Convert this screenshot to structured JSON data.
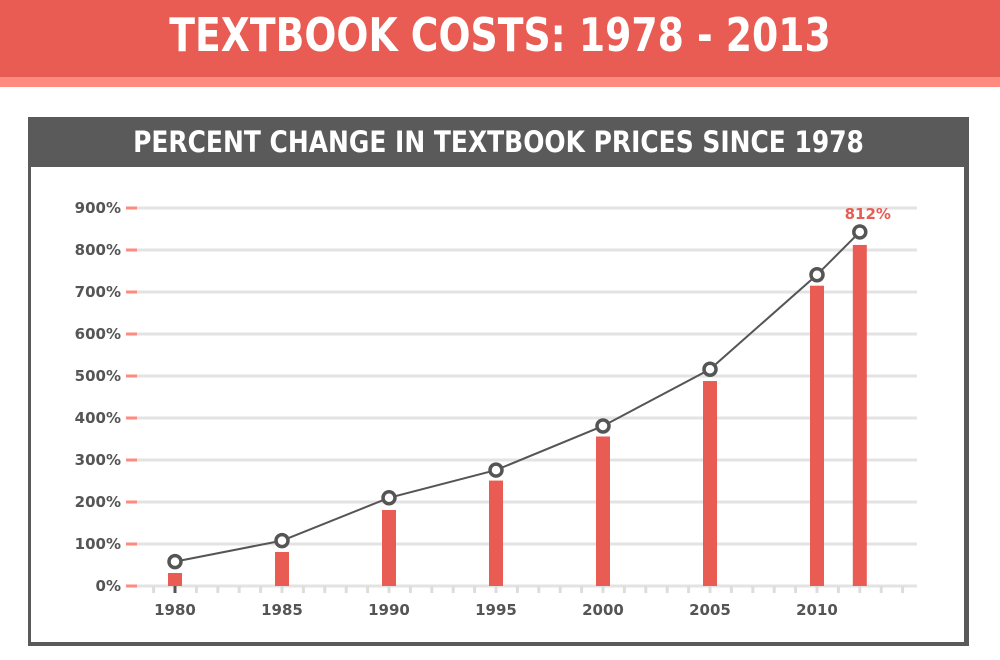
{
  "header": {
    "title": "TEXTBOOK COSTS: 1978 - 2013"
  },
  "chart_data": {
    "type": "bar+line",
    "title": "PERCENT CHANGE IN TEXTBOOK PRICES SINCE 1978",
    "xlabel": "",
    "ylabel": "",
    "x_tick_labels": [
      "1980",
      "1985",
      "1990",
      "1995",
      "2000",
      "2005",
      "2010"
    ],
    "xlim": [
      1979,
      2014
    ],
    "y_tick_labels": [
      "0%",
      "100%",
      "200%",
      "300%",
      "400%",
      "500%",
      "600%",
      "700%",
      "800%",
      "900%"
    ],
    "ylim": [
      0,
      900
    ],
    "grid": true,
    "series": [
      {
        "type": "bar",
        "x": [
          1980,
          1985,
          1990,
          1995,
          2000,
          2005,
          2010,
          2012
        ],
        "values": [
          31,
          81,
          181,
          251,
          356,
          488,
          715,
          812
        ],
        "color": "#E85C53"
      },
      {
        "type": "line",
        "x": [
          1980,
          1985,
          1990,
          1995,
          2000,
          2005,
          2010,
          2012
        ],
        "values": [
          58,
          108,
          210,
          276,
          381,
          516,
          741,
          843
        ],
        "color": "#555555"
      }
    ],
    "annotations": [
      {
        "x": 2012,
        "text": "812%",
        "color": "#E85C53"
      }
    ]
  }
}
